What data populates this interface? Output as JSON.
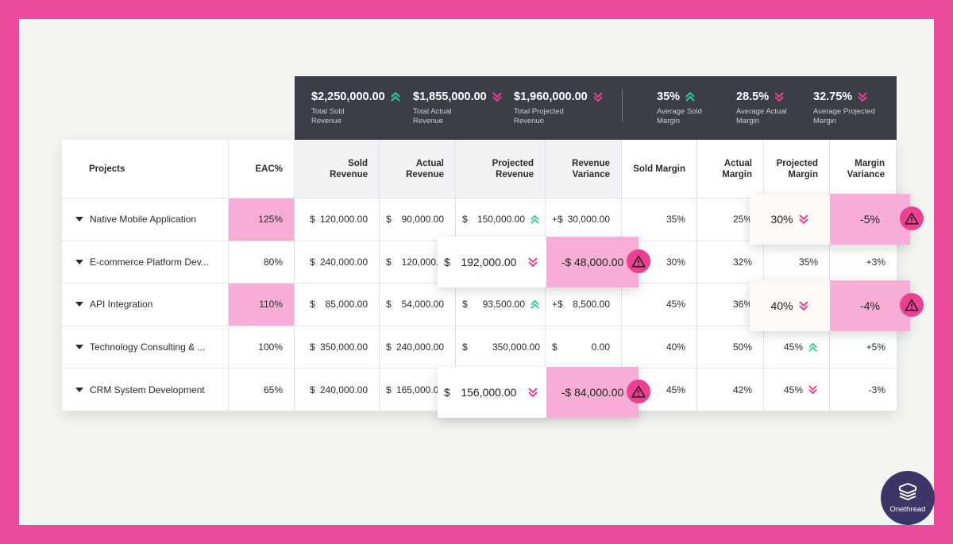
{
  "summary": {
    "items": [
      {
        "value": "$2,250,000.00",
        "label": "Total Sold Revenue",
        "trend": "up"
      },
      {
        "value": "$1,855,000.00",
        "label": "Total Actual Revenue",
        "trend": "down"
      },
      {
        "value": "$1,960,000.00",
        "label": "Total Projected Revenue",
        "trend": "down"
      },
      {
        "value": "35%",
        "label": "Average Sold Margin",
        "trend": "up"
      },
      {
        "value": "28.5%",
        "label": "Average Actual Margin",
        "trend": "down"
      },
      {
        "value": "32.75%",
        "label": "Average Projected Margin",
        "trend": "down"
      }
    ]
  },
  "table": {
    "headers": [
      "Projects",
      "EAC%",
      "Sold Revenue",
      "Actual Revenue",
      "Projected Revenue",
      "Revenue Variance",
      "Sold Margin",
      "Actual Margin",
      "Projected Margin",
      "Margin Variance"
    ],
    "rows": [
      {
        "project": "Native Mobile Application",
        "eac": "125%",
        "sold": "120,000.00",
        "actual": "90,000.00",
        "projected": "150,000.00",
        "proj_trend": "up",
        "variance_prefix": "+$",
        "variance": "30,000.00",
        "sold_margin": "35%",
        "actual_margin": "25%",
        "proj_margin": "",
        "proj_margin_trend": "",
        "margin_var": ""
      },
      {
        "project": "E-commerce Platform Dev...",
        "eac": "80%",
        "sold": "240,000.00",
        "actual": "120,000.0",
        "projected": "",
        "proj_trend": "",
        "variance_prefix": "",
        "variance": "",
        "sold_margin": "30%",
        "actual_margin": "32%",
        "proj_margin": "35%",
        "proj_margin_trend": "",
        "margin_var": "+3%"
      },
      {
        "project": "API Integration",
        "eac": "110%",
        "sold": "85,000.00",
        "actual": "54,000.00",
        "projected": "93,500.00",
        "proj_trend": "up",
        "variance_prefix": "+$",
        "variance": "8,500.00",
        "sold_margin": "45%",
        "actual_margin": "36%",
        "proj_margin": "",
        "proj_margin_trend": "",
        "margin_var": ""
      },
      {
        "project": "Technology Consulting & ...",
        "eac": "100%",
        "sold": "350,000.00",
        "actual": "240,000.00",
        "projected": "350,000.00",
        "proj_trend": "",
        "variance_prefix": "$",
        "variance": "0.00",
        "sold_margin": "40%",
        "actual_margin": "50%",
        "proj_margin": "45%",
        "proj_margin_trend": "up",
        "margin_var": "+5%"
      },
      {
        "project": "CRM System Development",
        "eac": "65%",
        "sold": "240,000.00",
        "actual": "165,000.00",
        "projected": "",
        "proj_trend": "",
        "variance_prefix": "",
        "variance": "",
        "sold_margin": "45%",
        "actual_margin": "42%",
        "proj_margin": "45%",
        "proj_margin_trend": "down",
        "margin_var": "-3%"
      }
    ],
    "currency": "$"
  },
  "callouts": [
    {
      "projected": "192,000.00",
      "variance": "-$ 48,000.00"
    },
    {
      "projected": "156,000.00",
      "variance": "-$ 84,000.00"
    },
    {
      "margin": "30%",
      "margin_var": "-5%"
    },
    {
      "margin": "40%",
      "margin_var": "-4%"
    }
  ],
  "brand": {
    "name": "Onethread"
  },
  "colors": {
    "accent_pink": "#ee3f93",
    "highlight_pink": "#f7aed6",
    "up_green": "#2fcf95",
    "header_dark": "#3a3f47",
    "frame": "#ee4a9c"
  }
}
